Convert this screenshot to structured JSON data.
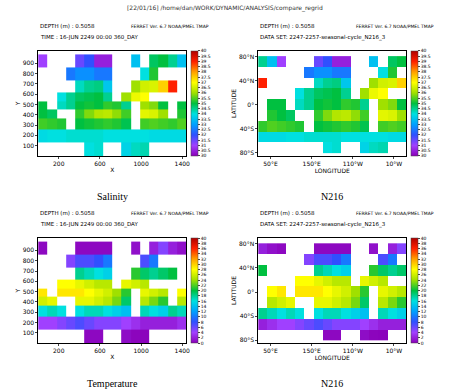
{
  "header": {
    "text": "[22/01/16] /home/dan/WORK/DYNAMIC/ANALYSIS/compare_regrid",
    "stamp": "FERRET Ver. 6.7 NOAA/PMEL TMAP"
  },
  "chart_data": [
    {
      "type": "heatmap",
      "title": "Salinity",
      "annotations": [
        "DEPTH (m) : 0.5058",
        "TIME : 16-JUN 2249 00:00 360_DAY"
      ],
      "x_label": "X",
      "y_label": "Y",
      "xlim": [
        0,
        1440
      ],
      "ylim": [
        0,
        1021
      ],
      "xticks": [
        200,
        600,
        1000,
        1400
      ],
      "yticks": [
        100,
        200,
        300,
        400,
        500,
        600,
        700,
        800,
        900
      ],
      "x": [
        45,
        135,
        225,
        315,
        405,
        495,
        585,
        675,
        765,
        855,
        945,
        1035,
        1125,
        1215,
        1305,
        1395
      ],
      "y": [
        60,
        200,
        310,
        410,
        490,
        570,
        670,
        790,
        920
      ],
      "cells": [
        [
          null,
          null,
          null,
          null,
          null,
          34.0,
          34.1,
          null,
          null,
          33.8,
          34.2,
          34.3,
          null,
          null,
          null,
          null
        ],
        [
          33.9,
          34.0,
          34.0,
          34.1,
          34.1,
          34.1,
          34.1,
          34.0,
          34.0,
          34.0,
          34.0,
          34.0,
          33.9,
          33.9,
          33.9,
          33.9
        ],
        [
          35.4,
          35.3,
          35.2,
          null,
          35.0,
          35.1,
          35.2,
          35.3,
          35.2,
          34.9,
          null,
          35.4,
          35.5,
          35.4,
          35.3,
          35.5
        ],
        [
          35.0,
          34.8,
          null,
          null,
          35.3,
          35.8,
          36.2,
          36.3,
          35.9,
          35.4,
          null,
          36.7,
          36.6,
          36.0,
          null,
          35.2
        ],
        [
          35.0,
          null,
          34.2,
          34.5,
          35.0,
          35.1,
          35.0,
          35.3,
          35.2,
          34.5,
          null,
          36.0,
          35.8,
          35.0,
          null,
          35.0
        ],
        [
          null,
          null,
          34.0,
          34.5,
          34.8,
          34.9,
          35.0,
          34.5,
          null,
          36.0,
          36.8,
          37.0,
          null,
          null,
          null,
          null
        ],
        [
          null,
          null,
          null,
          null,
          34.2,
          34.5,
          34.6,
          33.6,
          null,
          null,
          36.0,
          36.5,
          36.6,
          37.5,
          39.0,
          null
        ],
        [
          null,
          null,
          null,
          32.5,
          32.8,
          32.8,
          32.5,
          32.5,
          null,
          null,
          null,
          34.0,
          35.2,
          null,
          null,
          null
        ],
        [
          31.0,
          null,
          null,
          null,
          31.5,
          32.0,
          30.5,
          30.5,
          null,
          null,
          33.5,
          null,
          34.8,
          35.0,
          34.5,
          33.5
        ]
      ],
      "colorbar": {
        "range": [
          30,
          40
        ],
        "ticks": [
          30,
          30.5,
          31,
          31.5,
          32,
          32.5,
          33,
          33.5,
          34,
          34.5,
          35,
          35.5,
          36,
          36.5,
          37,
          37.5,
          38,
          38.5,
          39,
          39.5,
          40
        ]
      }
    },
    {
      "type": "heatmap",
      "title": "N216",
      "annotations": [
        "DEPTH (m) : 0.5058",
        "DATA SET: 2247-2257-seasonal-cycle_N216_3"
      ],
      "x_label": "LONGITUDE",
      "y_label": "LATITUDE",
      "xlim": [
        20,
        380
      ],
      "ylim": [
        -85,
        90
      ],
      "xticks": [
        {
          "value": 50,
          "label": "50°E"
        },
        {
          "value": 150,
          "label": "150°E"
        },
        {
          "value": 250,
          "label": "110°W"
        },
        {
          "value": 350,
          "label": "10°W"
        }
      ],
      "yticks": [
        {
          "value": -80,
          "label": "80°S"
        },
        {
          "value": -40,
          "label": "40°S"
        },
        {
          "value": 0,
          "label": "0°"
        },
        {
          "value": 40,
          "label": "40°N"
        },
        {
          "value": 80,
          "label": "80°N"
        }
      ],
      "x": [
        31.25,
        53.75,
        76.25,
        98.75,
        121.25,
        143.75,
        166.25,
        188.75,
        211.25,
        233.75,
        256.25,
        278.75,
        301.25,
        323.75,
        346.25,
        368.75
      ],
      "y": [
        -72,
        -54,
        -36,
        -18,
        0,
        18,
        36,
        54,
        72
      ],
      "cells": [
        [
          null,
          null,
          null,
          null,
          null,
          null,
          null,
          34.0,
          34.1,
          null,
          null,
          33.8,
          34.2,
          34.3,
          null,
          null
        ],
        [
          33.9,
          33.9,
          33.9,
          34.0,
          34.0,
          34.1,
          34.1,
          34.1,
          34.1,
          34.0,
          34.0,
          34.0,
          34.0,
          34.0,
          33.9,
          33.9
        ],
        [
          35.3,
          35.5,
          35.4,
          35.3,
          35.2,
          null,
          35.0,
          35.1,
          35.2,
          35.3,
          35.2,
          34.9,
          null,
          35.4,
          35.5,
          35.4
        ],
        [
          null,
          35.2,
          35.0,
          34.8,
          null,
          null,
          35.3,
          35.8,
          36.2,
          36.3,
          35.9,
          35.4,
          null,
          36.7,
          36.6,
          36.0
        ],
        [
          null,
          35.0,
          35.0,
          null,
          34.2,
          34.5,
          35.0,
          35.1,
          35.0,
          35.3,
          35.2,
          34.5,
          null,
          36.0,
          35.8,
          35.0
        ],
        [
          null,
          null,
          null,
          null,
          34.0,
          34.5,
          34.8,
          34.9,
          35.0,
          34.5,
          null,
          36.0,
          36.8,
          37.0,
          null,
          null
        ],
        [
          39.0,
          null,
          null,
          null,
          null,
          null,
          34.2,
          34.5,
          34.6,
          33.6,
          null,
          null,
          36.0,
          36.5,
          36.6,
          37.5
        ],
        [
          null,
          null,
          null,
          null,
          null,
          32.5,
          32.8,
          32.8,
          32.5,
          32.5,
          null,
          null,
          null,
          34.0,
          35.2,
          null
        ],
        [
          34.5,
          33.5,
          31.0,
          null,
          null,
          null,
          31.5,
          32.0,
          30.5,
          30.5,
          null,
          null,
          33.5,
          null,
          34.8,
          35.0
        ]
      ],
      "colorbar": {
        "range": [
          30,
          40
        ],
        "ticks": [
          30,
          30.5,
          31,
          31.5,
          32,
          32.5,
          33,
          33.5,
          34,
          34.5,
          35,
          35.5,
          36,
          36.5,
          37,
          37.5,
          38,
          38.5,
          39,
          39.5,
          40
        ]
      }
    },
    {
      "type": "heatmap",
      "title": "Temperature",
      "annotations": [
        "DEPTH (m) : 0.5058",
        "TIME : 16-JUN 2249 00:00 360_DAY"
      ],
      "x_label": "X",
      "y_label": "Y",
      "xlim": [
        0,
        1440
      ],
      "ylim": [
        0,
        1021
      ],
      "xticks": [
        200,
        600,
        1000,
        1400
      ],
      "yticks": [
        100,
        200,
        300,
        400,
        500,
        600,
        700,
        800,
        900
      ],
      "x": [
        45,
        135,
        225,
        315,
        405,
        495,
        585,
        675,
        765,
        855,
        945,
        1035,
        1125,
        1215,
        1305,
        1395
      ],
      "y": [
        60,
        200,
        310,
        410,
        490,
        570,
        670,
        790,
        920
      ],
      "cells": [
        [
          null,
          null,
          null,
          null,
          null,
          0.5,
          0.5,
          null,
          null,
          0.8,
          0.3,
          0.2,
          null,
          null,
          null,
          null
        ],
        [
          4,
          4,
          5,
          6,
          7,
          6,
          5,
          5,
          5,
          4,
          3,
          2,
          2,
          2,
          2,
          3
        ],
        [
          16,
          17,
          16,
          null,
          16,
          17,
          17,
          16,
          15,
          14,
          null,
          17,
          16,
          15,
          18,
          17
        ],
        [
          26,
          27,
          null,
          null,
          27,
          27,
          26,
          25,
          23,
          19,
          null,
          25,
          23,
          21,
          null,
          25
        ],
        [
          29,
          null,
          29,
          29,
          29,
          28,
          27,
          26,
          24,
          21,
          null,
          27,
          26,
          25,
          null,
          28
        ],
        [
          null,
          null,
          28,
          28,
          27,
          26,
          25,
          25,
          null,
          27,
          26,
          25,
          null,
          null,
          null,
          null
        ],
        [
          null,
          null,
          null,
          null,
          18,
          17,
          16,
          15,
          null,
          null,
          21,
          19,
          18,
          19,
          20,
          null
        ],
        [
          null,
          null,
          null,
          5,
          7,
          7,
          8,
          10,
          null,
          null,
          null,
          7,
          10,
          null,
          null,
          null
        ],
        [
          0.5,
          null,
          null,
          null,
          0.5,
          0.5,
          0.5,
          0.5,
          null,
          null,
          1,
          null,
          2,
          5,
          2,
          1
        ]
      ],
      "colorbar": {
        "range": [
          0,
          40
        ],
        "ticks": [
          0,
          2,
          4,
          6,
          8,
          10,
          12,
          14,
          16,
          18,
          20,
          22,
          24,
          26,
          28,
          30,
          32,
          34,
          36,
          38,
          40
        ]
      }
    },
    {
      "type": "heatmap",
      "title": "N216",
      "annotations": [
        "DEPTH (m) : 0.5058",
        "DATA SET: 2247-2257-seasonal-cycle_N216_3"
      ],
      "x_label": "LONGITUDE",
      "y_label": "LATITUDE",
      "xlim": [
        20,
        380
      ],
      "ylim": [
        -85,
        90
      ],
      "xticks": [
        {
          "value": 50,
          "label": "50°E"
        },
        {
          "value": 150,
          "label": "150°E"
        },
        {
          "value": 250,
          "label": "110°W"
        },
        {
          "value": 350,
          "label": "10°W"
        }
      ],
      "yticks": [
        {
          "value": -80,
          "label": "80°S"
        },
        {
          "value": -40,
          "label": "40°S"
        },
        {
          "value": 0,
          "label": "0°"
        },
        {
          "value": 40,
          "label": "40°N"
        },
        {
          "value": 80,
          "label": "80°N"
        }
      ],
      "x": [
        31.25,
        53.75,
        76.25,
        98.75,
        121.25,
        143.75,
        166.25,
        188.75,
        211.25,
        233.75,
        256.25,
        278.75,
        301.25,
        323.75,
        346.25,
        368.75
      ],
      "y": [
        -72,
        -54,
        -36,
        -18,
        0,
        18,
        36,
        54,
        72
      ],
      "cells": [
        [
          null,
          null,
          null,
          null,
          null,
          null,
          null,
          0.5,
          0.5,
          null,
          null,
          0.8,
          0.3,
          0.2,
          null,
          null
        ],
        [
          2,
          3,
          4,
          4,
          5,
          6,
          7,
          6,
          5,
          5,
          5,
          4,
          3,
          2,
          2,
          2
        ],
        [
          18,
          17,
          16,
          17,
          16,
          null,
          16,
          17,
          17,
          16,
          15,
          14,
          null,
          17,
          16,
          15
        ],
        [
          null,
          25,
          26,
          27,
          null,
          null,
          27,
          27,
          26,
          25,
          23,
          19,
          null,
          25,
          23,
          21
        ],
        [
          null,
          28,
          29,
          null,
          29,
          29,
          29,
          28,
          27,
          26,
          24,
          21,
          null,
          27,
          26,
          25
        ],
        [
          null,
          null,
          null,
          null,
          28,
          28,
          27,
          26,
          25,
          25,
          null,
          27,
          26,
          25,
          null,
          null
        ],
        [
          20,
          null,
          null,
          null,
          null,
          null,
          18,
          17,
          16,
          15,
          null,
          null,
          21,
          19,
          18,
          19
        ],
        [
          null,
          null,
          null,
          null,
          null,
          5,
          7,
          7,
          8,
          10,
          null,
          null,
          null,
          7,
          10,
          null
        ],
        [
          2,
          1,
          0.5,
          null,
          null,
          null,
          0.5,
          0.5,
          0.5,
          0.5,
          null,
          null,
          1,
          null,
          2,
          5
        ]
      ],
      "colorbar": {
        "range": [
          0,
          40
        ],
        "ticks": [
          0,
          2,
          4,
          6,
          8,
          10,
          12,
          14,
          16,
          18,
          20,
          22,
          24,
          26,
          28,
          30,
          32,
          34,
          36,
          38,
          40
        ]
      }
    }
  ]
}
